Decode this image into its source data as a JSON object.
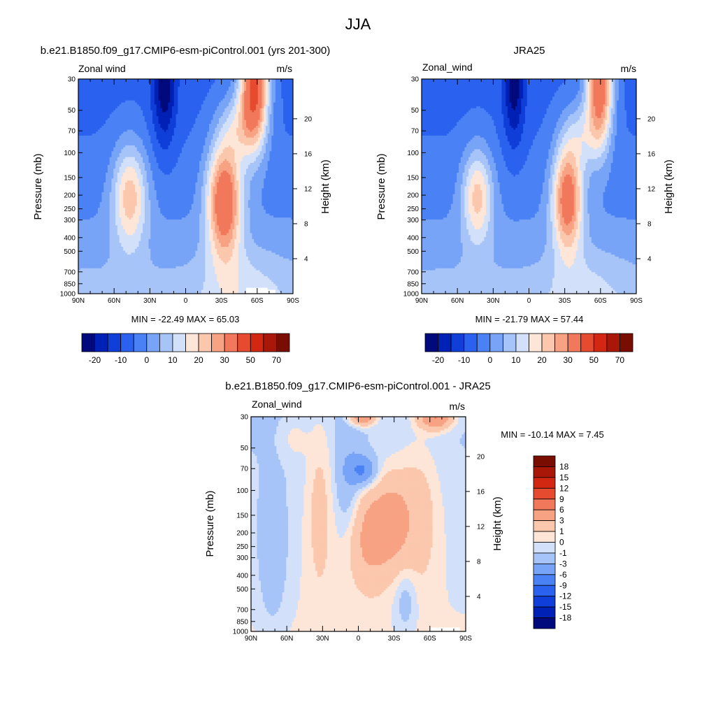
{
  "page": {
    "title": "JJA"
  },
  "colors": {
    "main_scale": [
      "#000a7d",
      "#0021b5",
      "#0f3ed8",
      "#2a62ef",
      "#4a82f5",
      "#78a4f7",
      "#a7c4f8",
      "#d2e1f9",
      "#fde6d7",
      "#fbc7ad",
      "#f7a283",
      "#f1785a",
      "#e64a2f",
      "#d22711",
      "#a81707",
      "#7a0d02"
    ],
    "diff_scale": [
      "#000a7d",
      "#0021b5",
      "#0f3ed8",
      "#2a62ef",
      "#4a82f5",
      "#78a4f7",
      "#a7c4f8",
      "#d2e1f9",
      "#fde6d7",
      "#fbc7ad",
      "#f7a283",
      "#f1785a",
      "#e64a2f",
      "#d22711",
      "#a81707",
      "#7a0d02"
    ]
  },
  "panels": {
    "model": {
      "title": "b.e21.B1850.f09_g17.CMIP6-esm-piControl.001 (yrs 201-300)",
      "left_label": "Zonal wind",
      "units": "m/s",
      "ylabel": "Pressure (mb)",
      "ylabel_right": "Height (km)",
      "minmax": "MIN = -22.49  MAX =  65.03",
      "colorbar_labels": [
        "-20",
        "-10",
        "0",
        "10",
        "20",
        "30",
        "50",
        "70"
      ]
    },
    "obs": {
      "title": "JRA25",
      "left_label": "Zonal_wind",
      "units": "m/s",
      "ylabel": "Pressure (mb)",
      "ylabel_right": "Height (km)",
      "minmax": "MIN = -21.79  MAX =  57.44",
      "colorbar_labels": [
        "-20",
        "-10",
        "0",
        "10",
        "20",
        "30",
        "50",
        "70"
      ]
    },
    "diff": {
      "title": "b.e21.B1850.f09_g17.CMIP6-esm-piControl.001 - JRA25",
      "left_label": "Zonal_wind",
      "units": "m/s",
      "ylabel": "Pressure (mb)",
      "ylabel_right": "Height (km)",
      "minmax": "MIN = -10.14  MAX =   7.45",
      "colorbar_labels": [
        "18",
        "15",
        "12",
        "9",
        "6",
        "3",
        "1",
        "0",
        "-1",
        "-3",
        "-6",
        "-9",
        "-12",
        "-15",
        "-18"
      ]
    }
  },
  "chart_data": [
    {
      "type": "heatmap",
      "title": "b.e21.B1850.f09_g17.CMIP6-esm-piControl.001 (yrs 201-300)",
      "ylabel": "Pressure (mb)",
      "ylabel_right": "Height (km)",
      "x_ticks": [
        "90N",
        "60N",
        "30N",
        "0",
        "30S",
        "60S",
        "90S"
      ],
      "x_values": [
        90,
        60,
        30,
        0,
        -30,
        -60,
        -90
      ],
      "xlim": [
        90,
        -90
      ],
      "y_ticks": [
        30,
        50,
        70,
        100,
        150,
        200,
        250,
        300,
        400,
        500,
        700,
        850,
        1000
      ],
      "ylim": [
        1000,
        30
      ],
      "y_scale": "log",
      "y_right_ticks": [
        4,
        8,
        12,
        16,
        20
      ],
      "levels": [
        -20,
        -15,
        -10,
        -5,
        0,
        5,
        10,
        15,
        20,
        25,
        30,
        40,
        50,
        60,
        70
      ],
      "min": -22.49,
      "max": 65.03,
      "features": [
        {
          "kind": "max",
          "lat": 45,
          "p": 200,
          "value": 18
        },
        {
          "kind": "min",
          "lat": 20,
          "p": 30,
          "value": -22
        },
        {
          "kind": "max",
          "lat": -30,
          "p": 190,
          "value": 42
        },
        {
          "kind": "max",
          "lat": -60,
          "p": 30,
          "value": 65
        }
      ]
    },
    {
      "type": "heatmap",
      "title": "JRA25",
      "ylabel": "Pressure (mb)",
      "ylabel_right": "Height (km)",
      "x_ticks": [
        "90N",
        "60N",
        "30N",
        "0",
        "30S",
        "60S",
        "90S"
      ],
      "x_values": [
        90,
        60,
        30,
        0,
        -30,
        -60,
        -90
      ],
      "xlim": [
        90,
        -90
      ],
      "y_ticks": [
        30,
        50,
        70,
        100,
        150,
        200,
        250,
        300,
        400,
        500,
        700,
        850,
        1000
      ],
      "ylim": [
        1000,
        30
      ],
      "y_scale": "log",
      "y_right_ticks": [
        4,
        8,
        12,
        16,
        20
      ],
      "levels": [
        -20,
        -15,
        -10,
        -5,
        0,
        5,
        10,
        15,
        20,
        25,
        30,
        40,
        50,
        60,
        70
      ],
      "min": -21.79,
      "max": 57.44,
      "features": [
        {
          "kind": "max",
          "lat": 45,
          "p": 200,
          "value": 17
        },
        {
          "kind": "min",
          "lat": 18,
          "p": 30,
          "value": -21
        },
        {
          "kind": "max",
          "lat": -30,
          "p": 200,
          "value": 40
        },
        {
          "kind": "max",
          "lat": -60,
          "p": 30,
          "value": 57
        }
      ]
    },
    {
      "type": "heatmap",
      "title": "b.e21.B1850.f09_g17.CMIP6-esm-piControl.001 - JRA25",
      "ylabel": "Pressure (mb)",
      "ylabel_right": "Height (km)",
      "x_ticks": [
        "90N",
        "60N",
        "30N",
        "0",
        "30S",
        "60S",
        "90S"
      ],
      "x_values": [
        90,
        60,
        30,
        0,
        -30,
        -60,
        -90
      ],
      "xlim": [
        90,
        -90
      ],
      "y_ticks": [
        30,
        50,
        70,
        100,
        150,
        200,
        250,
        300,
        400,
        500,
        700,
        850,
        1000
      ],
      "ylim": [
        1000,
        30
      ],
      "y_scale": "log",
      "y_right_ticks": [
        4,
        8,
        12,
        16,
        20
      ],
      "levels": [
        -18,
        -15,
        -12,
        -9,
        -6,
        -3,
        -1,
        0,
        1,
        3,
        6,
        9,
        12,
        15,
        18
      ],
      "min": -10.14,
      "max": 7.45,
      "features": [
        {
          "kind": "max",
          "lat": 0,
          "p": 30,
          "value": 6
        },
        {
          "kind": "min",
          "lat": 0,
          "p": 70,
          "value": -7
        },
        {
          "kind": "max",
          "lat": -60,
          "p": 30,
          "value": 7
        },
        {
          "kind": "max",
          "lat": 0,
          "p": 200,
          "value": 3
        },
        {
          "kind": "max",
          "lat": -30,
          "p": 150,
          "value": 3
        },
        {
          "kind": "min",
          "lat": 30,
          "p": 100,
          "value": -2
        },
        {
          "kind": "min",
          "lat": 80,
          "p": 300,
          "value": -3
        }
      ]
    }
  ]
}
